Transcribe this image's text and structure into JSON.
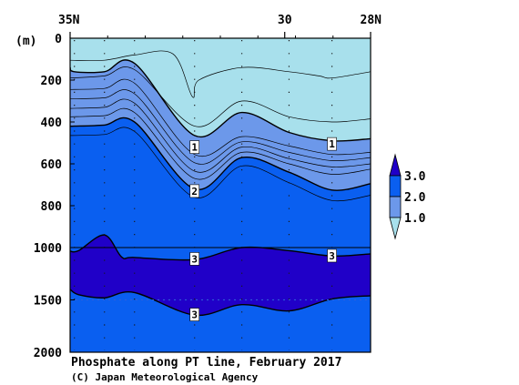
{
  "chart_data": {
    "type": "contour-section",
    "title": "Phosphate along PT line, February 2017",
    "credit": "(C) Japan Meteorological Agency",
    "x_axis": {
      "ticks": [
        {
          "value": 35,
          "label": "35N"
        },
        {
          "value": 30,
          "label": "30"
        },
        {
          "value": 28,
          "label": "28N"
        }
      ],
      "range": [
        35,
        28
      ],
      "minor_tick_count": 8
    },
    "y_axis": {
      "unit": "(m)",
      "range": [
        0,
        2000
      ],
      "scale_break_at": 1000,
      "ticks": [
        {
          "value": 0,
          "label": "0"
        },
        {
          "value": 200,
          "label": "200"
        },
        {
          "value": 400,
          "label": "400"
        },
        {
          "value": 600,
          "label": "600"
        },
        {
          "value": 800,
          "label": "800"
        },
        {
          "value": 1000,
          "label": "1000"
        },
        {
          "value": 1500,
          "label": "1500"
        },
        {
          "value": 2000,
          "label": "2000"
        }
      ]
    },
    "stations_lat": [
      34.9,
      34.2,
      33.5,
      32.1,
      31.0,
      29.9,
      28.9
    ],
    "colorbar": {
      "labels": [
        "3.0",
        "2.0",
        "1.0"
      ],
      "colors": [
        "#2000c8",
        "#0a5ff0",
        "#6c98ea",
        "#a8e0ec"
      ]
    },
    "level_colors": {
      "lt1": "#a8e0ec",
      "1to2": "#6c98ea",
      "2to3": "#0a5ff0",
      "gt3": "#2000c8"
    },
    "contours": {
      "c1_0": {
        "label": "1",
        "points": [
          [
            35,
            140
          ],
          [
            34.9,
            160
          ],
          [
            34.2,
            160
          ],
          [
            33.5,
            120
          ],
          [
            32.1,
            465
          ],
          [
            31.0,
            355
          ],
          [
            29.9,
            450
          ],
          [
            28.9,
            490
          ],
          [
            28,
            480
          ]
        ]
      },
      "c2_0": {
        "label": "2",
        "points": [
          [
            35,
            420
          ],
          [
            34.9,
            420
          ],
          [
            34.2,
            415
          ],
          [
            33.5,
            400
          ],
          [
            32.1,
            720
          ],
          [
            31.0,
            570
          ],
          [
            29.9,
            640
          ],
          [
            28.9,
            725
          ],
          [
            28,
            695
          ]
        ]
      },
      "c3_upper": {
        "label": "3",
        "points": [
          [
            35,
            1035
          ],
          [
            34.8,
            1030
          ],
          [
            34.2,
            940
          ],
          [
            33.8,
            1090
          ],
          [
            33.5,
            1095
          ],
          [
            32.1,
            1115
          ],
          [
            31.0,
            1000
          ],
          [
            29.9,
            1030
          ],
          [
            28.9,
            1080
          ],
          [
            28,
            1060
          ]
        ]
      },
      "c3_lower": {
        "label": "3",
        "points": [
          [
            35,
            1400
          ],
          [
            34.8,
            1450
          ],
          [
            34.2,
            1480
          ],
          [
            33.5,
            1430
          ],
          [
            32.1,
            1645
          ],
          [
            31.0,
            1545
          ],
          [
            29.9,
            1605
          ],
          [
            28.9,
            1490
          ],
          [
            28,
            1460
          ]
        ]
      },
      "fine_lines": [
        [
          [
            35,
            105
          ],
          [
            34.2,
            105
          ],
          [
            33.5,
            80
          ],
          [
            32.6,
            75
          ],
          [
            32.15,
            280
          ],
          [
            32.0,
            200
          ],
          [
            31.0,
            140
          ],
          [
            29.9,
            160
          ],
          [
            29.2,
            180
          ],
          [
            28.9,
            190
          ],
          [
            28,
            160
          ]
        ],
        [
          [
            35,
            190
          ],
          [
            34.2,
            180
          ],
          [
            33.5,
            150
          ],
          [
            32.1,
            420
          ],
          [
            31.0,
            300
          ],
          [
            29.9,
            375
          ],
          [
            28.9,
            400
          ],
          [
            28,
            385
          ]
        ],
        [
          [
            35,
            245
          ],
          [
            34.2,
            240
          ],
          [
            33.5,
            215
          ],
          [
            32.1,
            555
          ],
          [
            31.0,
            470
          ],
          [
            29.9,
            515
          ],
          [
            28.9,
            555
          ],
          [
            28,
            545
          ]
        ],
        [
          [
            35,
            290
          ],
          [
            34.2,
            285
          ],
          [
            33.5,
            265
          ],
          [
            32.1,
            595
          ],
          [
            31.0,
            495
          ],
          [
            29.9,
            545
          ],
          [
            28.9,
            585
          ],
          [
            28,
            570
          ]
        ],
        [
          [
            35,
            335
          ],
          [
            34.2,
            330
          ],
          [
            33.5,
            310
          ],
          [
            32.1,
            635
          ],
          [
            31.0,
            520
          ],
          [
            29.9,
            575
          ],
          [
            28.9,
            615
          ],
          [
            28,
            600
          ]
        ],
        [
          [
            35,
            375
          ],
          [
            34.2,
            370
          ],
          [
            33.5,
            355
          ],
          [
            32.1,
            670
          ],
          [
            31.0,
            545
          ],
          [
            29.9,
            600
          ],
          [
            28.9,
            650
          ],
          [
            28,
            625
          ]
        ],
        [
          [
            35,
            465
          ],
          [
            34.2,
            460
          ],
          [
            33.5,
            445
          ],
          [
            32.1,
            760
          ],
          [
            31.0,
            610
          ],
          [
            29.9,
            690
          ],
          [
            28.9,
            775
          ],
          [
            28,
            750
          ]
        ]
      ]
    },
    "contour_label_positions": [
      {
        "ref": "c1_0",
        "lat": 32.1,
        "depth": 520
      },
      {
        "ref": "c1_0",
        "lat": 28.9,
        "depth": 505
      },
      {
        "ref": "c2_0",
        "lat": 32.1,
        "depth": 730
      },
      {
        "ref": "c3_upper",
        "lat": 32.1,
        "depth": 1108
      },
      {
        "ref": "c3_upper",
        "lat": 28.9,
        "depth": 1078
      },
      {
        "ref": "c3_lower",
        "lat": 32.1,
        "depth": 1640
      }
    ]
  }
}
